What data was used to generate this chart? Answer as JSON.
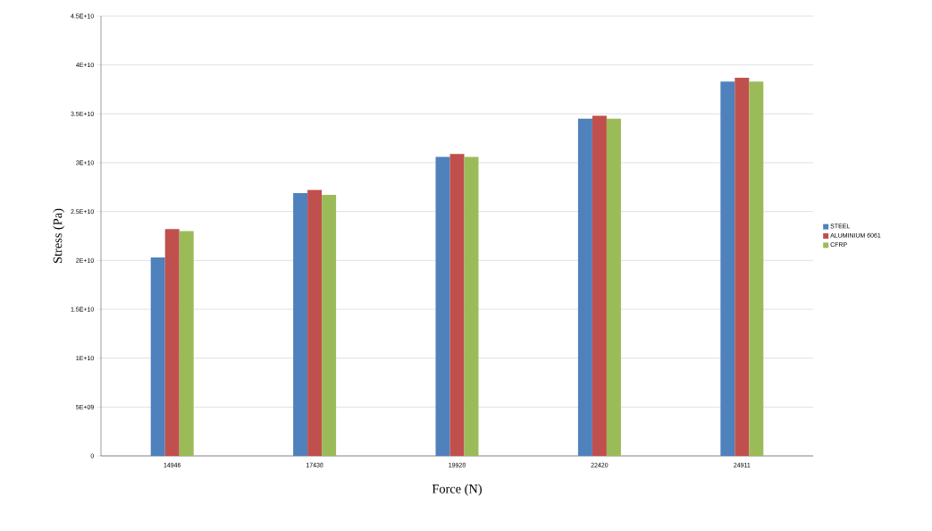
{
  "chart_data": {
    "type": "bar",
    "xlabel": "Force (N)",
    "ylabel": "Stress (Pa)",
    "categories": [
      "14946",
      "17438",
      "19928",
      "22420",
      "24911"
    ],
    "series": [
      {
        "name": "STEEL",
        "color": "#4f81bd",
        "values": [
          20300000000,
          26900000000,
          30600000000,
          34500000000,
          38300000000
        ]
      },
      {
        "name": "ALUMINIUM 6061",
        "color": "#c0504d",
        "values": [
          23200000000,
          27200000000,
          30900000000,
          34800000000,
          38700000000
        ]
      },
      {
        "name": "CFRP",
        "color": "#9bbb59",
        "values": [
          23000000000,
          26700000000,
          30600000000,
          34500000000,
          38300000000
        ]
      }
    ],
    "ylim": [
      0,
      45000000000
    ],
    "yticks": [
      0,
      {
        "value": 5000000000,
        "label": "5E+09"
      },
      {
        "value": 10000000000,
        "label": "1E+10"
      },
      {
        "value": 15000000000,
        "label": "1.5E+10"
      },
      {
        "value": 20000000000,
        "label": "2E+10"
      },
      {
        "value": 25000000000,
        "label": "2.5E+10"
      },
      {
        "value": 30000000000,
        "label": "3E+10"
      },
      {
        "value": 35000000000,
        "label": "3.5E+10"
      },
      {
        "value": 40000000000,
        "label": "4E+10"
      },
      {
        "value": 45000000000,
        "label": "4.5E+10"
      }
    ],
    "grid": "y",
    "legend": "right"
  }
}
